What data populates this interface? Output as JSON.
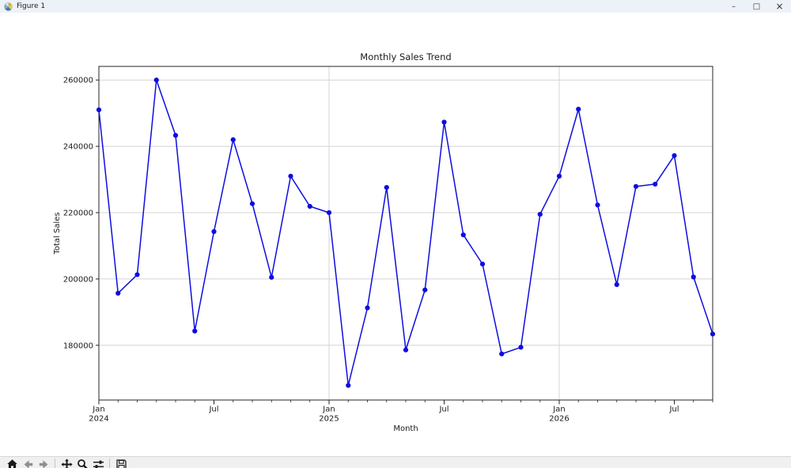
{
  "window": {
    "title": "Figure 1",
    "controls": {
      "minimize": "–",
      "maximize": "□",
      "close": "×"
    }
  },
  "toolbar": {
    "buttons": [
      {
        "name": "home"
      },
      {
        "name": "back"
      },
      {
        "name": "forward"
      },
      {
        "name": "pan"
      },
      {
        "name": "zoom-to-rect"
      },
      {
        "name": "configure-subplots"
      },
      {
        "name": "save"
      }
    ]
  },
  "chart_data": {
    "type": "line",
    "title": "Monthly Sales Trend",
    "xlabel": "Month",
    "ylabel": "Total Sales",
    "legend": "none",
    "grid": true,
    "line_color": "#0d0de0",
    "marker": "o",
    "x": [
      "2024-01",
      "2024-02",
      "2024-03",
      "2024-04",
      "2024-05",
      "2024-06",
      "2024-07",
      "2024-08",
      "2024-09",
      "2024-10",
      "2024-11",
      "2024-12",
      "2025-01",
      "2025-02",
      "2025-03",
      "2025-04",
      "2025-05",
      "2025-06",
      "2025-07",
      "2025-08",
      "2025-09",
      "2025-10",
      "2025-11",
      "2025-12",
      "2026-01",
      "2026-02",
      "2026-03",
      "2026-04",
      "2026-05",
      "2026-06",
      "2026-07",
      "2026-08",
      "2026-09"
    ],
    "values": [
      251000,
      195700,
      201300,
      260000,
      243300,
      184300,
      214300,
      242000,
      222700,
      200500,
      231000,
      221900,
      220000,
      167900,
      191300,
      227600,
      178600,
      196700,
      247300,
      213300,
      204500,
      177400,
      179400,
      219500,
      231000,
      251200,
      222300,
      198300,
      227900,
      228600,
      237200,
      200600,
      183400
    ],
    "ylim": [
      163500,
      264100
    ],
    "yticks": [
      180000,
      200000,
      220000,
      240000,
      260000
    ],
    "xticks": [
      {
        "i": 0,
        "line1": "Jan",
        "line2": "2024",
        "grid": false
      },
      {
        "i": 6,
        "line1": "Jul",
        "line2": "",
        "grid": false
      },
      {
        "i": 12,
        "line1": "Jan",
        "line2": "2025",
        "grid": true
      },
      {
        "i": 18,
        "line1": "Jul",
        "line2": "",
        "grid": false
      },
      {
        "i": 24,
        "line1": "Jan",
        "line2": "2026",
        "grid": true
      },
      {
        "i": 30,
        "line1": "Jul",
        "line2": "",
        "grid": false
      }
    ]
  }
}
